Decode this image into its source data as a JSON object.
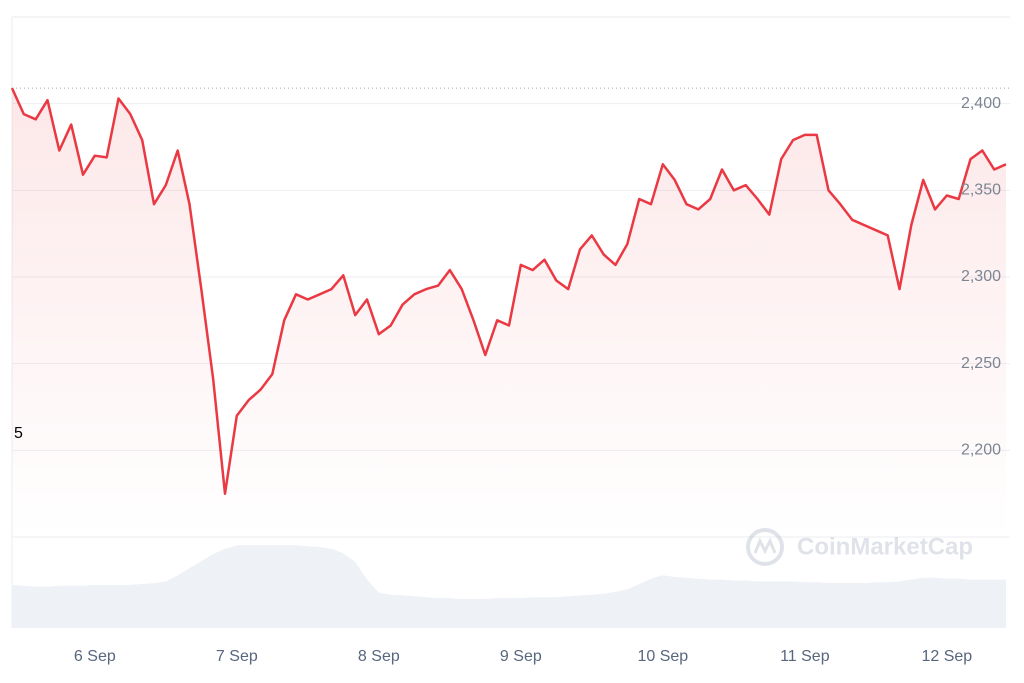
{
  "chart_data": {
    "type": "line",
    "categories": [
      null,
      null,
      null,
      null,
      null,
      null,
      null,
      "6 Sep",
      null,
      null,
      null,
      null,
      null,
      null,
      null,
      null,
      null,
      null,
      null,
      "7 Sep",
      null,
      null,
      null,
      null,
      null,
      null,
      null,
      null,
      null,
      null,
      null,
      "8 Sep",
      null,
      null,
      null,
      null,
      null,
      null,
      null,
      null,
      null,
      null,
      null,
      "9 Sep",
      null,
      null,
      null,
      null,
      null,
      null,
      null,
      null,
      null,
      null,
      null,
      "10 Sep",
      null,
      null,
      null,
      null,
      null,
      null,
      null,
      null,
      null,
      null,
      null,
      "11 Sep",
      null,
      null,
      null,
      null,
      null,
      null,
      null,
      null,
      null,
      null,
      null,
      "12 Sep",
      null,
      null,
      null,
      null,
      null
    ],
    "values": [
      2409,
      2394,
      2391,
      2402,
      2373,
      2388,
      2359,
      2370,
      2369,
      2403,
      2394,
      2379,
      2342,
      2353,
      2373,
      2342,
      2293,
      2241,
      2175,
      2220,
      2229,
      2235,
      2244,
      2275,
      2290,
      2287,
      2290,
      2293,
      2301,
      2278,
      2287,
      2267,
      2272,
      2284,
      2290,
      2293,
      2295,
      2304,
      2293,
      2275,
      2255,
      2275,
      2272,
      2307,
      2304,
      2310,
      2298,
      2293,
      2316,
      2324,
      2313,
      2307,
      2319,
      2345,
      2342,
      2365,
      2356,
      2342,
      2339,
      2345,
      2362,
      2350,
      2353,
      2345,
      2336,
      2368,
      2379,
      2382,
      2382,
      2350,
      2342,
      2333,
      2330,
      2327,
      2324,
      2293,
      2330,
      2356,
      2339,
      2347,
      2345,
      2368,
      2373,
      2362,
      2365
    ],
    "color": "#ea3943",
    "ylim": [
      2150,
      2450
    ],
    "yticks": [
      {
        "value": 2200,
        "label": "2,200"
      },
      {
        "value": 2250,
        "label": "2,250"
      },
      {
        "value": 2300,
        "label": "2,300"
      },
      {
        "value": 2350,
        "label": "2,350"
      },
      {
        "value": 2400,
        "label": "2,400"
      }
    ],
    "grid": true,
    "volume_values": [
      49,
      48,
      47,
      47,
      48,
      48,
      48,
      49,
      49,
      49,
      49,
      50,
      51,
      53,
      60,
      68,
      76,
      84,
      90,
      94,
      94,
      94,
      94,
      94,
      94,
      93,
      92,
      90,
      85,
      75,
      55,
      40,
      38,
      37,
      36,
      35,
      34,
      34,
      33,
      33,
      33,
      34,
      34,
      34,
      35,
      35,
      35,
      36,
      37,
      38,
      39,
      41,
      44,
      50,
      56,
      60,
      58,
      57,
      56,
      55,
      55,
      54,
      54,
      53,
      53,
      53,
      53,
      52,
      52,
      51,
      51,
      51,
      51,
      52,
      52,
      53,
      55,
      57,
      57,
      56,
      56,
      55,
      55,
      55,
      55
    ],
    "volume_lim": [
      0,
      100
    ],
    "volume_color": "#eef1f5",
    "annotation": "5",
    "watermark": "CoinMarketCap"
  }
}
